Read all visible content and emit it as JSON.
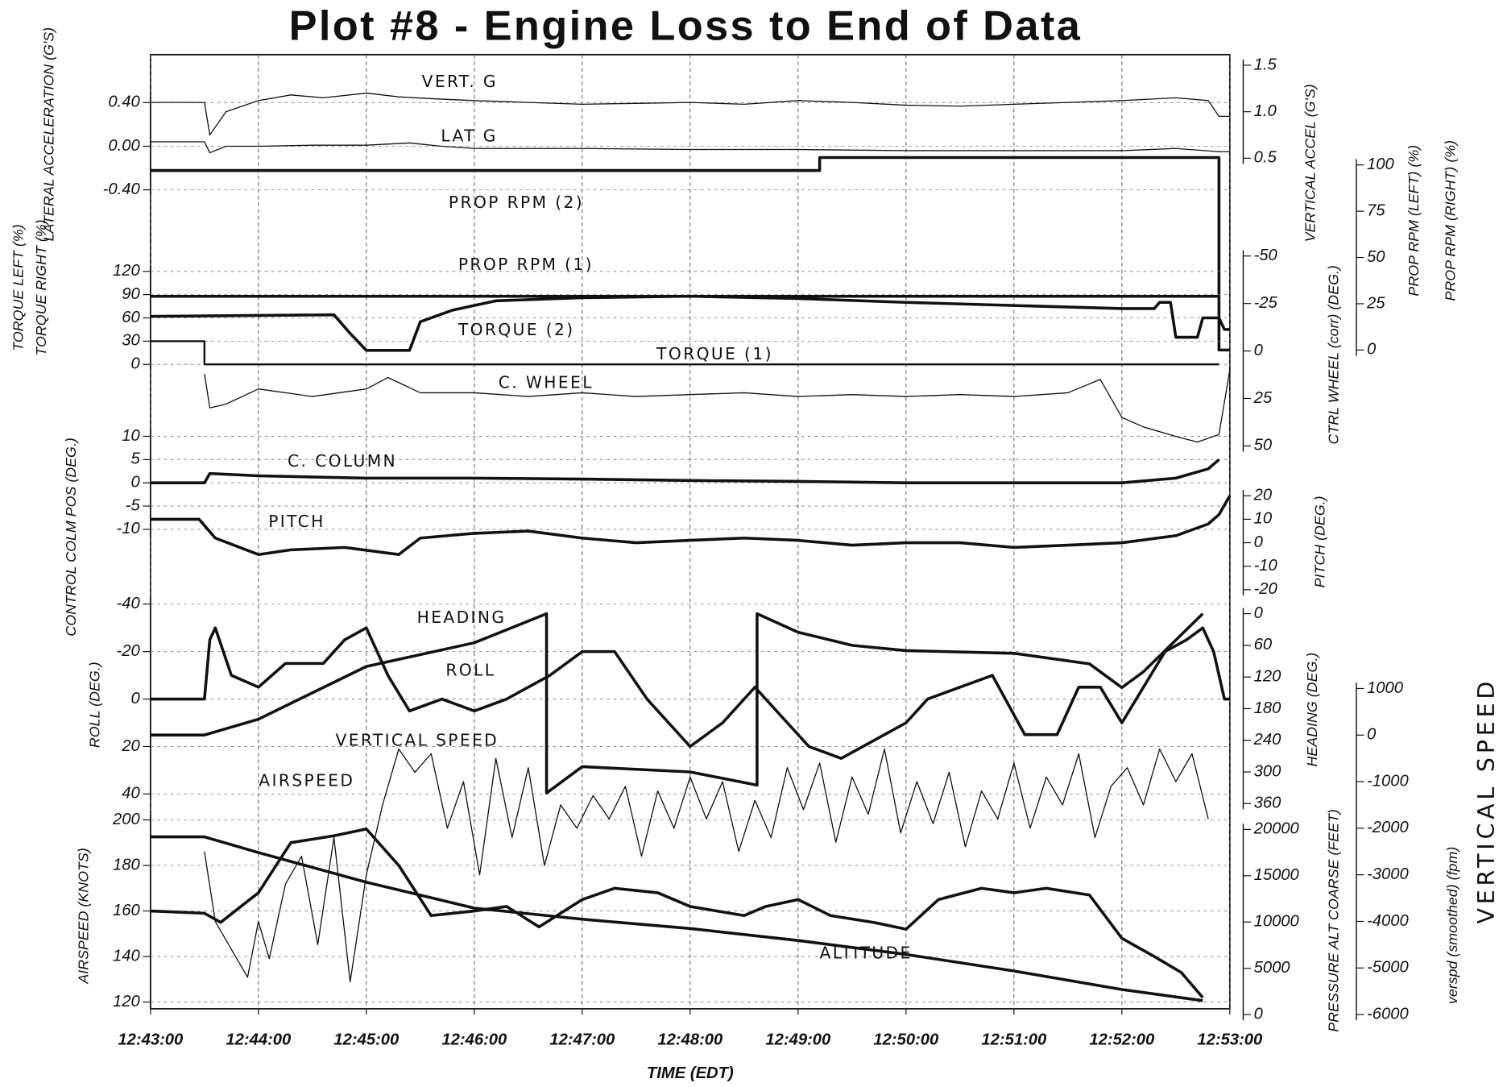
{
  "chart_data": {
    "type": "line",
    "title": "Plot #8 -  Engine Loss to End of Data",
    "xlabel": "TIME    (EDT)",
    "xlim": [
      0,
      10
    ],
    "xticks": [
      {
        "value": 0,
        "label": "12:43:00"
      },
      {
        "value": 1,
        "label": "12:44:00"
      },
      {
        "value": 2,
        "label": "12:45:00"
      },
      {
        "value": 3,
        "label": "12:46:00"
      },
      {
        "value": 4,
        "label": "12:47:00"
      },
      {
        "value": 5,
        "label": "12:48:00"
      },
      {
        "value": 6,
        "label": "12:49:00"
      },
      {
        "value": 7,
        "label": "12:50:00"
      },
      {
        "value": 8,
        "label": "12:51:00"
      },
      {
        "value": 9,
        "label": "12:52:00"
      },
      {
        "value": 10,
        "label": "12:53:00"
      }
    ],
    "grid": true,
    "axes": [
      {
        "label": [
          "LATERAL ACCELERATION (G'S)"
        ],
        "side": "left",
        "ylim": [
          -0.4,
          0.4
        ],
        "yticks": [
          {
            "value": 0.4,
            "label": "0.40"
          },
          {
            "value": 0,
            "label": "0.00"
          },
          {
            "value": -0.4,
            "label": "-0.40"
          }
        ],
        "series": [
          {
            "name": "LAT G",
            "color": "#111",
            "x": [
              0,
              0.5,
              0.55,
              0.7,
              1,
              1.5,
              2,
              2.4,
              2.7,
              3,
              4,
              5,
              6,
              7,
              8,
              9,
              9.5,
              9.9,
              10
            ],
            "values": [
              0.04,
              0.04,
              -0.06,
              0,
              0,
              0.01,
              0.01,
              0.03,
              0,
              -0.02,
              -0.02,
              -0.03,
              -0.03,
              -0.04,
              -0.04,
              -0.04,
              -0.02,
              -0.05,
              -0.05
            ]
          }
        ]
      },
      {
        "label": [
          "VERTICAL ACCEL (G'S)"
        ],
        "side": "right",
        "ylim": [
          0.5,
          1.5
        ],
        "yticks": [
          1.5,
          {
            "value": 1,
            "label": "1.0"
          },
          0.5
        ],
        "series": [
          {
            "name": "VERT. G",
            "color": "#111",
            "x": [
              0,
              0.5,
              0.55,
              0.7,
              1,
              1.3,
              1.6,
              2,
              2.3,
              2.6,
              3,
              3.5,
              4,
              4.5,
              5,
              5.5,
              6,
              6.5,
              7,
              7.5,
              8,
              8.5,
              9,
              9.5,
              9.8,
              9.9,
              10
            ],
            "values": [
              1.1,
              1.1,
              0.75,
              1.0,
              1.12,
              1.18,
              1.15,
              1.2,
              1.16,
              1.14,
              1.12,
              1.1,
              1.08,
              1.09,
              1.1,
              1.08,
              1.12,
              1.1,
              1.07,
              1.06,
              1.08,
              1.1,
              1.12,
              1.15,
              1.12,
              0.95,
              0.95
            ]
          }
        ]
      },
      {
        "label": [
          "PROP RPM (LEFT) (%)",
          "PROP RPM (RIGHT) (%)"
        ],
        "side": "right",
        "ylim": [
          0,
          100
        ],
        "yticks": [
          100,
          75,
          50,
          25,
          0
        ],
        "series": [
          {
            "name": "PROP RPM (2)",
            "color": "#111",
            "x": [
              0,
              6.2,
              6.2,
              9.9,
              9.9,
              10
            ],
            "values": [
              97,
              97,
              104,
              104,
              0,
              0
            ]
          },
          {
            "name": "PROP RPM (1)",
            "color": "#111",
            "x": [
              0,
              9.9
            ],
            "values": [
              29,
              29
            ]
          }
        ]
      },
      {
        "label": [
          "TORQUE LEFT (%)",
          "TORQUE RIGHT (%)"
        ],
        "side": "left",
        "ylim": [
          0,
          120
        ],
        "yticks": [
          120,
          90,
          60,
          30,
          0
        ],
        "series": [
          {
            "name": "TORQUE (2)",
            "color": "#111",
            "x": [
              0,
              1.7,
              1.85,
              2.0,
              2.4,
              2.5,
              2.8,
              3.2,
              4,
              5,
              6,
              7,
              8,
              9,
              9.3,
              9.35,
              9.45,
              9.5,
              9.7,
              9.75,
              9.9,
              9.95,
              10
            ],
            "values": [
              62,
              64,
              40,
              18,
              18,
              55,
              70,
              82,
              86,
              88,
              85,
              80,
              76,
              72,
              72,
              80,
              80,
              35,
              35,
              60,
              60,
              45,
              45
            ]
          },
          {
            "name": "TORQUE (1)",
            "color": "#111",
            "x": [
              0,
              0.5,
              0.5,
              9.9
            ],
            "values": [
              30,
              30,
              0,
              0
            ]
          }
        ]
      },
      {
        "label": [
          "CTRL WHEEL (corr) (DEG.)"
        ],
        "side": "right",
        "ylim": [
          -50,
          50
        ],
        "inverted": true,
        "yticks": [
          -50,
          -25,
          0,
          25,
          50
        ],
        "series": [
          {
            "name": "C. WHEEL",
            "color": "#111",
            "x": [
              0.5,
              0.55,
              0.7,
              1,
              1.5,
              2,
              2.2,
              2.5,
              3,
              3.5,
              4,
              4.5,
              5,
              5.5,
              6,
              6.5,
              7,
              7.5,
              8,
              8.5,
              8.8,
              9,
              9.2,
              9.5,
              9.7,
              9.9,
              10
            ],
            "values": [
              12,
              30,
              28,
              20,
              24,
              20,
              14,
              22,
              22,
              24,
              22,
              24,
              23,
              22,
              24,
              23,
              24,
              23,
              24,
              22,
              15,
              35,
              40,
              45,
              48,
              44,
              10
            ]
          }
        ]
      },
      {
        "label": [
          "CONTROL COLM POS (DEG.)"
        ],
        "side": "left",
        "ylim": [
          -10,
          10
        ],
        "yticks": [
          10,
          5,
          0,
          -5,
          -10
        ],
        "series": [
          {
            "name": "C. COLUMN",
            "color": "#111",
            "x": [
              0,
              0.5,
              0.55,
              1,
              2,
              3,
              4,
              5,
              6,
              7,
              8,
              9,
              9.5,
              9.8,
              9.9
            ],
            "values": [
              0,
              0,
              2,
              1.5,
              1,
              1,
              0.8,
              0.5,
              0.3,
              0,
              0,
              0,
              1,
              3,
              5
            ]
          }
        ]
      },
      {
        "label": [
          "PITCH (DEG.)"
        ],
        "side": "right",
        "ylim": [
          -20,
          20
        ],
        "yticks": [
          20,
          10,
          0,
          -10,
          -20
        ],
        "series": [
          {
            "name": "PITCH",
            "color": "#111",
            "x": [
              0,
              0.45,
              0.6,
              1,
              1.3,
              1.8,
              2.3,
              2.5,
              3,
              3.5,
              4,
              4.5,
              5,
              5.5,
              6,
              6.5,
              7,
              7.5,
              8,
              8.5,
              9,
              9.5,
              9.8,
              9.9,
              10
            ],
            "values": [
              10,
              10,
              2,
              -5,
              -3,
              -2,
              -5,
              2,
              4,
              5,
              2,
              0,
              1,
              2,
              1,
              -1,
              0,
              0,
              -2,
              -1,
              0,
              3,
              8,
              12,
              20
            ]
          }
        ]
      },
      {
        "label": [
          "ROLL (DEG.)"
        ],
        "side": "left",
        "ylim": [
          -40,
          40
        ],
        "inverted": true,
        "yticks": [
          -40,
          -20,
          0,
          20,
          40
        ],
        "series": [
          {
            "name": "ROLL",
            "color": "#111",
            "x": [
              0,
              0.5,
              0.55,
              0.6,
              0.75,
              1,
              1.25,
              1.6,
              1.8,
              2,
              2.2,
              2.4,
              2.7,
              3,
              3.3,
              3.5,
              3.7,
              4,
              4.3,
              4.6,
              5,
              5.3,
              5.6,
              5.8,
              6.1,
              6.4,
              6.6,
              7,
              7.2,
              7.5,
              7.8,
              8.1,
              8.4,
              8.6,
              8.8,
              9,
              9.2,
              9.4,
              9.6,
              9.75,
              9.85,
              9.95,
              10
            ],
            "values": [
              0,
              0,
              -25,
              -30,
              -10,
              -5,
              -15,
              -15,
              -25,
              -30,
              -10,
              5,
              0,
              5,
              0,
              -5,
              -10,
              -20,
              -20,
              0,
              20,
              10,
              -5,
              5,
              20,
              25,
              20,
              10,
              0,
              -5,
              -10,
              15,
              15,
              -5,
              -5,
              10,
              -5,
              -20,
              -25,
              -30,
              -20,
              0,
              0
            ]
          }
        ]
      },
      {
        "label": [
          "HEADING (DEG.)"
        ],
        "side": "right",
        "ylim": [
          0,
          360
        ],
        "inverted": true,
        "yticks": [
          0,
          60,
          120,
          180,
          240,
          300,
          360
        ],
        "series": [
          {
            "name": "HEADING",
            "color": "#111",
            "x": [
              0,
              0.5,
              1,
              2,
              3,
              3.67,
              3.67,
              4,
              5,
              5.62,
              5.62,
              6,
              6.5,
              7,
              8,
              8.7,
              9,
              9.2,
              9.75
            ],
            "values": [
              230,
              230,
              200,
              100,
              55,
              0,
              340,
              290,
              300,
              325,
              0,
              35,
              60,
              70,
              75,
              95,
              140,
              110,
              0
            ]
          }
        ]
      },
      {
        "label": [
          "verspd  (smoothed)  (fpm)",
          "VERTICAL  SPEED"
        ],
        "side": "right",
        "ylim": [
          -6000,
          1000
        ],
        "yticks": [
          1000,
          0,
          -1000,
          -2000,
          -3000,
          -4000,
          -5000,
          -6000
        ],
        "series": [
          {
            "name": "VERTICAL SPEED",
            "color": "#111",
            "x": [
              0.5,
              0.6,
              0.75,
              0.9,
              1.0,
              1.1,
              1.25,
              1.4,
              1.55,
              1.7,
              1.85,
              2.0,
              2.15,
              2.3,
              2.45,
              2.6,
              2.75,
              2.9,
              3.05,
              3.2,
              3.35,
              3.5,
              3.65,
              3.8,
              3.95,
              4.1,
              4.25,
              4.4,
              4.55,
              4.7,
              4.85,
              5.0,
              5.15,
              5.3,
              5.45,
              5.6,
              5.75,
              5.9,
              6.05,
              6.2,
              6.35,
              6.5,
              6.65,
              6.8,
              6.95,
              7.1,
              7.25,
              7.4,
              7.55,
              7.7,
              7.85,
              8.0,
              8.15,
              8.3,
              8.45,
              8.6,
              8.75,
              8.9,
              9.05,
              9.2,
              9.35,
              9.5,
              9.65,
              9.8
            ],
            "values": [
              -2500,
              -4000,
              -4600,
              -5200,
              -4000,
              -4800,
              -3200,
              -2600,
              -4500,
              -2200,
              -5300,
              -3000,
              -1500,
              -300,
              -800,
              -400,
              -2000,
              -1000,
              -3000,
              -500,
              -2200,
              -700,
              -2800,
              -1500,
              -2000,
              -1300,
              -1800,
              -1100,
              -2600,
              -1200,
              -2000,
              -900,
              -1800,
              -1000,
              -2500,
              -1400,
              -2200,
              -700,
              -1600,
              -600,
              -2300,
              -900,
              -1700,
              -300,
              -2100,
              -1000,
              -1900,
              -800,
              -2400,
              -1200,
              -1800,
              -600,
              -2000,
              -900,
              -1500,
              -400,
              -2200,
              -1100,
              -700,
              -1500,
              -300,
              -1000,
              -400,
              -1800
            ]
          }
        ]
      },
      {
        "label": [
          "AIRSPEED (KNOTS)"
        ],
        "side": "left",
        "ylim": [
          120,
          200
        ],
        "yticks": [
          200,
          180,
          160,
          140,
          120
        ],
        "series": [
          {
            "name": "AIRSPEED",
            "color": "#111",
            "x": [
              0,
              0.5,
              0.65,
              1.0,
              1.3,
              1.7,
              2.0,
              2.3,
              2.6,
              3.0,
              3.3,
              3.6,
              4.0,
              4.3,
              4.7,
              5.0,
              5.5,
              5.7,
              6.0,
              6.3,
              6.7,
              7.0,
              7.3,
              7.7,
              8.0,
              8.3,
              8.7,
              9.0,
              9.3,
              9.55,
              9.75
            ],
            "values": [
              160,
              159,
              155,
              168,
              190,
              193,
              196,
              180,
              158,
              160,
              162,
              153,
              165,
              170,
              168,
              162,
              158,
              162,
              165,
              158,
              155,
              152,
              165,
              170,
              168,
              170,
              167,
              148,
              140,
              133,
              122
            ]
          }
        ]
      },
      {
        "label": [
          "PRESSURE ALT COARSE (FEET)"
        ],
        "side": "right",
        "ylim": [
          0,
          20000
        ],
        "yticks": [
          20000,
          15000,
          10000,
          5000,
          0
        ],
        "series": [
          {
            "name": "ALTITUDE",
            "color": "#111",
            "x": [
              0,
              0.5,
              1,
              2,
              3,
              4,
              5,
              6,
              7,
              8,
              9,
              9.75
            ],
            "values": [
              19200,
              19200,
              17500,
              14300,
              11500,
              10300,
              9300,
              8000,
              6500,
              4700,
              2700,
              1500
            ]
          }
        ]
      }
    ]
  }
}
